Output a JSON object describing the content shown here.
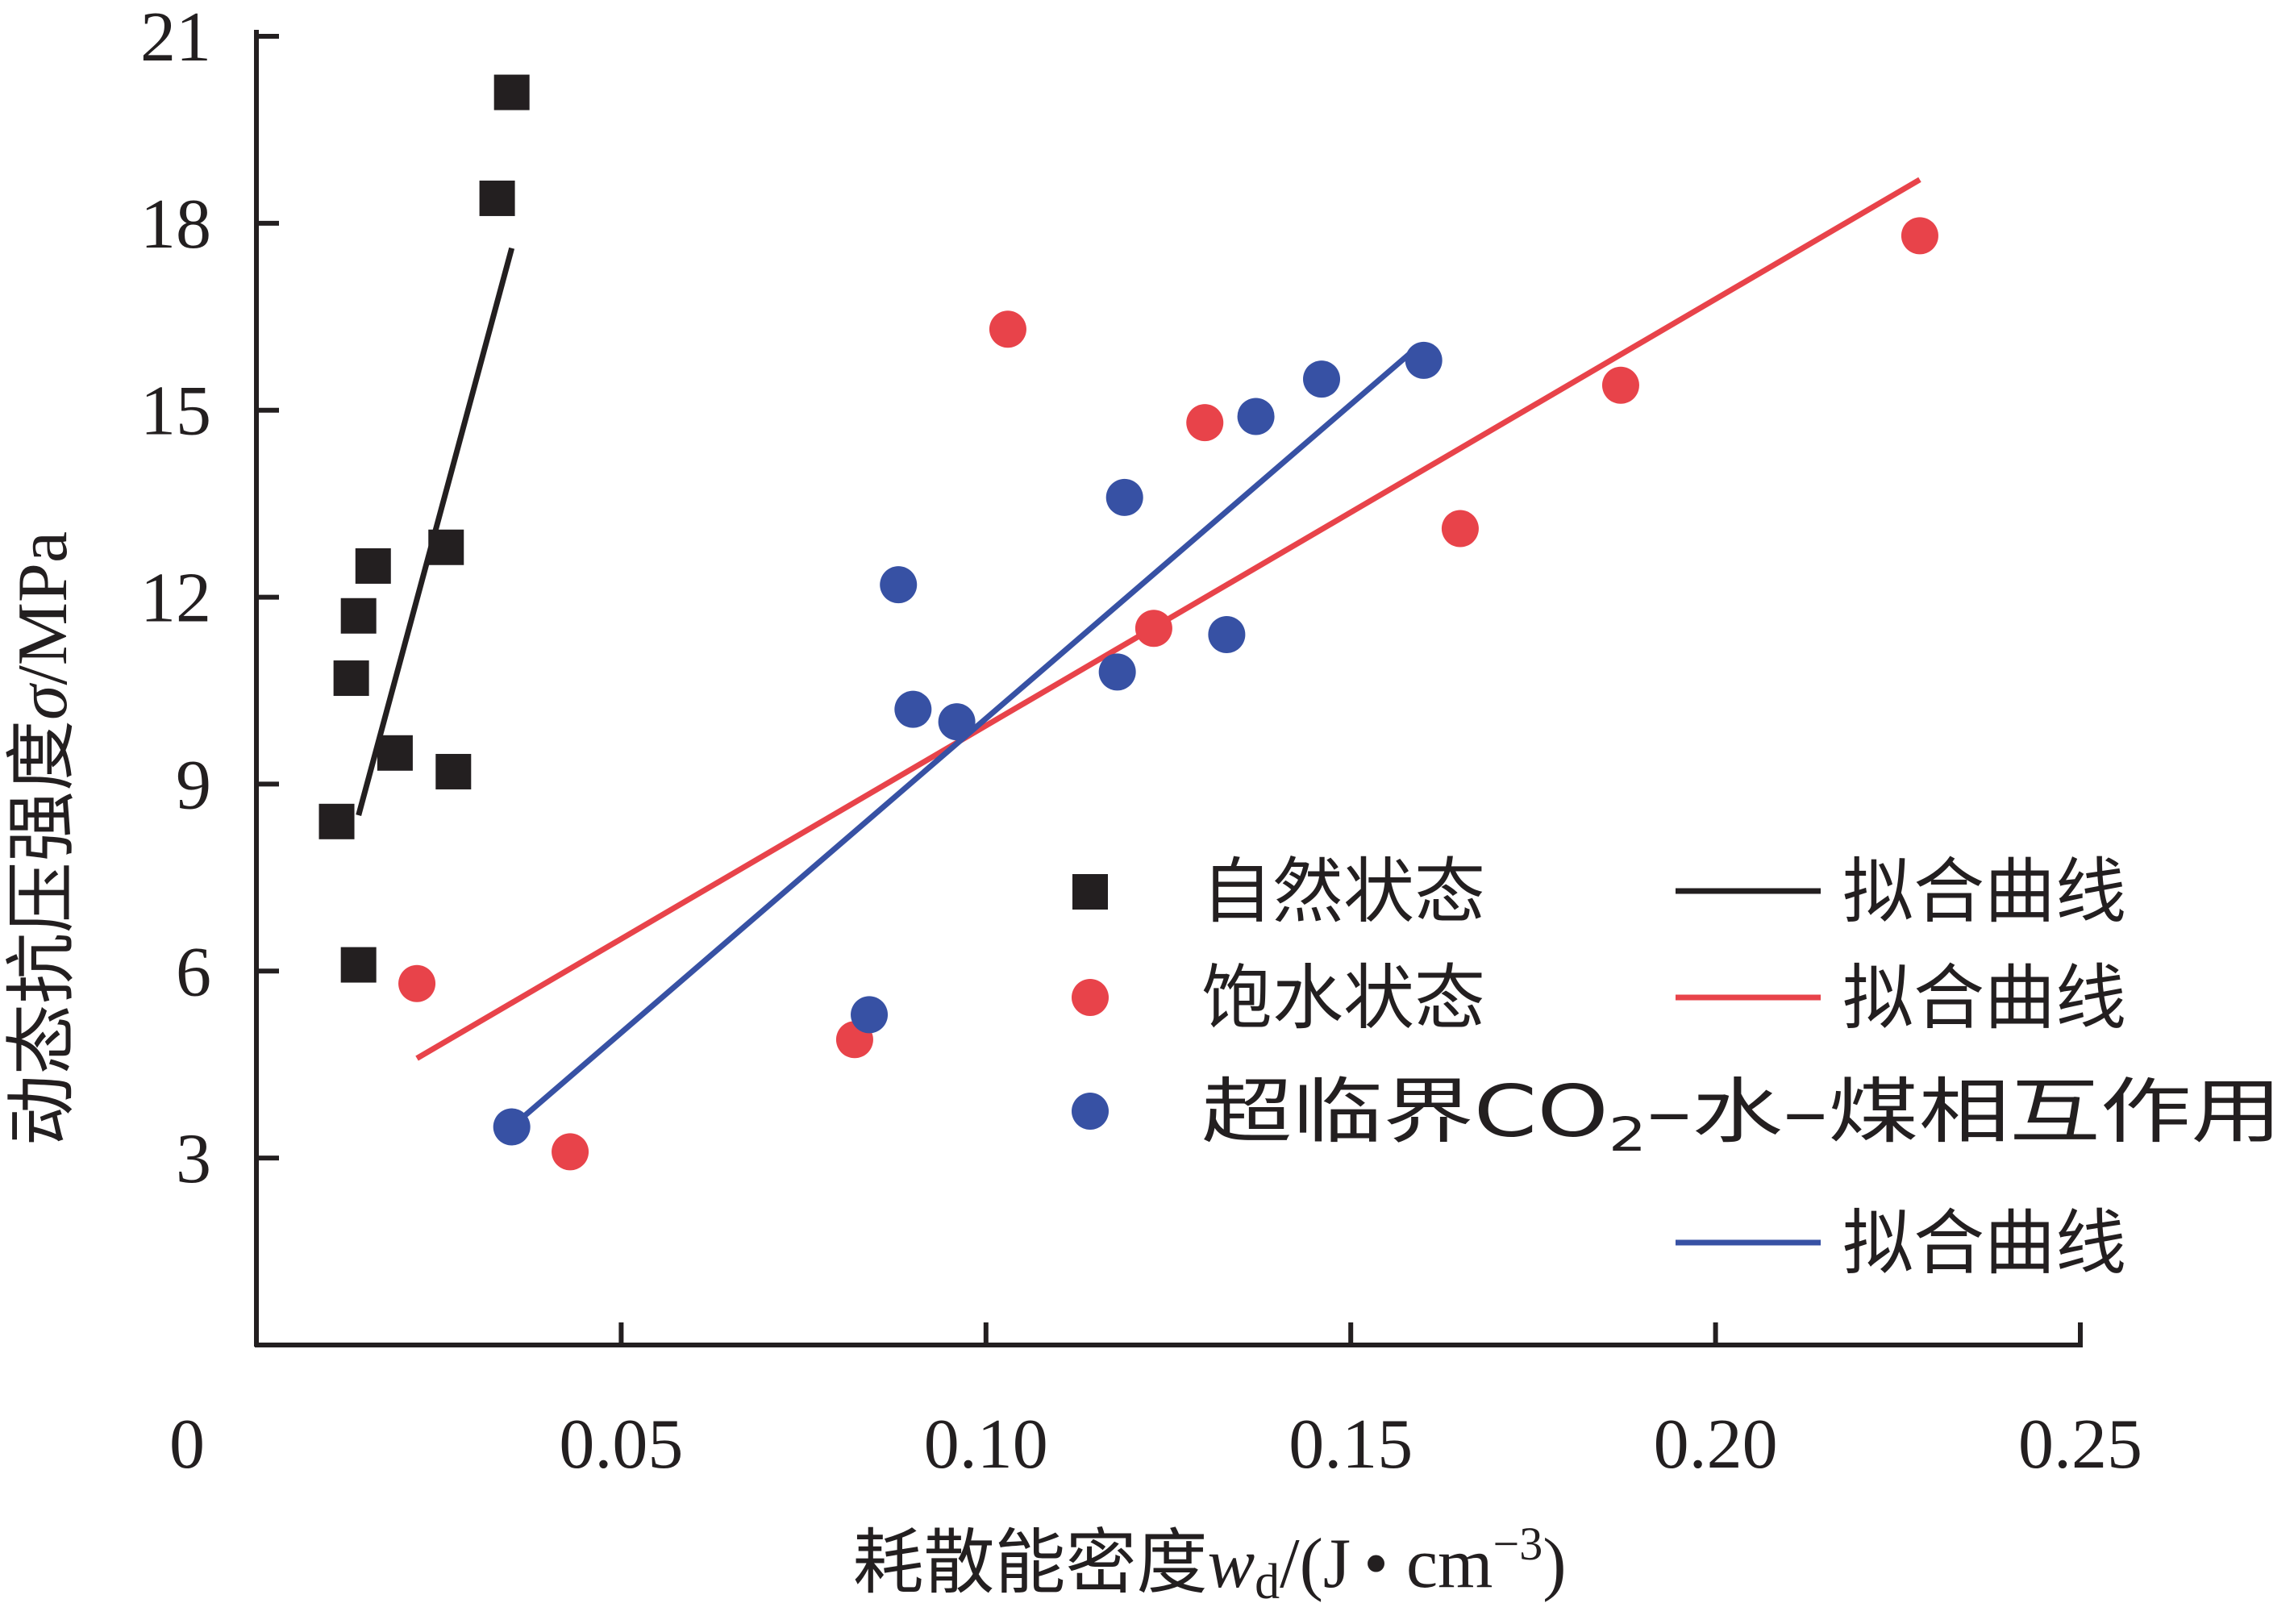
{
  "chart_data": {
    "type": "scatter",
    "xlabel": {
      "prefix": "耗散能密度",
      "var": "w",
      "sub": "d",
      "unit_open": "/(J",
      "dot": "•",
      "unit_cm": " cm",
      "unit_sup": "−3",
      "unit_close": ")"
    },
    "ylabel": {
      "prefix": "动态抗压强度",
      "var": "σ",
      "unit": "/MPa"
    },
    "xlim": [
      0,
      0.25
    ],
    "ylim": [
      0,
      21
    ],
    "x_ticks": [
      {
        "value": 0,
        "label": "0"
      },
      {
        "value": 0.05,
        "label": "0.05"
      },
      {
        "value": 0.1,
        "label": "0.10"
      },
      {
        "value": 0.15,
        "label": "0.15"
      },
      {
        "value": 0.2,
        "label": "0.20"
      },
      {
        "value": 0.25,
        "label": "0.25"
      }
    ],
    "y_ticks": [
      {
        "value": 3,
        "label": "3"
      },
      {
        "value": 6,
        "label": "6"
      },
      {
        "value": 9,
        "label": "9"
      },
      {
        "value": 12,
        "label": "12"
      },
      {
        "value": 15,
        "label": "15"
      },
      {
        "value": 18,
        "label": "18"
      },
      {
        "value": 21,
        "label": "21"
      }
    ],
    "series": [
      {
        "name": "自然状态",
        "marker": "square",
        "color": "#231f20",
        "points": [
          [
            0.011,
            8.4
          ],
          [
            0.013,
            10.7
          ],
          [
            0.014,
            11.7
          ],
          [
            0.014,
            6.1
          ],
          [
            0.016,
            12.5
          ],
          [
            0.019,
            9.5
          ],
          [
            0.026,
            12.8
          ],
          [
            0.027,
            9.2
          ],
          [
            0.033,
            18.4
          ],
          [
            0.035,
            20.1
          ]
        ]
      },
      {
        "name": "饱水状态",
        "marker": "circle",
        "color": "#e8434a",
        "points": [
          [
            0.022,
            5.8
          ],
          [
            0.043,
            3.1
          ],
          [
            0.082,
            4.9
          ],
          [
            0.103,
            16.3
          ],
          [
            0.123,
            11.5
          ],
          [
            0.13,
            14.8
          ],
          [
            0.165,
            13.1
          ],
          [
            0.187,
            15.4
          ],
          [
            0.228,
            17.8
          ]
        ]
      },
      {
        "name": "超临界CO₂–水–煤相互作用",
        "marker": "circle",
        "color": "#3751a4",
        "points": [
          [
            0.035,
            3.5
          ],
          [
            0.084,
            5.3
          ],
          [
            0.088,
            12.2
          ],
          [
            0.09,
            10.2
          ],
          [
            0.096,
            10.0
          ],
          [
            0.118,
            10.8
          ],
          [
            0.119,
            13.6
          ],
          [
            0.133,
            11.4
          ],
          [
            0.137,
            14.9
          ],
          [
            0.146,
            15.5
          ],
          [
            0.16,
            15.8
          ]
        ]
      }
    ],
    "fit_lines": [
      {
        "name": "拟合曲线",
        "color": "#231f20",
        "x": [
          0.014,
          0.035
        ],
        "y": [
          8.5,
          17.6
        ]
      },
      {
        "name": "拟合曲线",
        "color": "#e8434a",
        "x": [
          0.022,
          0.228
        ],
        "y": [
          4.6,
          18.7
        ]
      },
      {
        "name": "拟合曲线",
        "color": "#3751a4",
        "x": [
          0.035,
          0.159
        ],
        "y": [
          3.5,
          16.0
        ]
      }
    ],
    "legend": {
      "placement": "lower-right",
      "marker_labels": [
        "自然状态",
        "饱水状态"
      ],
      "blue_label": {
        "prefix": "超临界CO",
        "sub": "2",
        "suffix": "–水–煤相互作用"
      },
      "line_labels": [
        "拟合曲线",
        "拟合曲线",
        "拟合曲线"
      ]
    }
  }
}
